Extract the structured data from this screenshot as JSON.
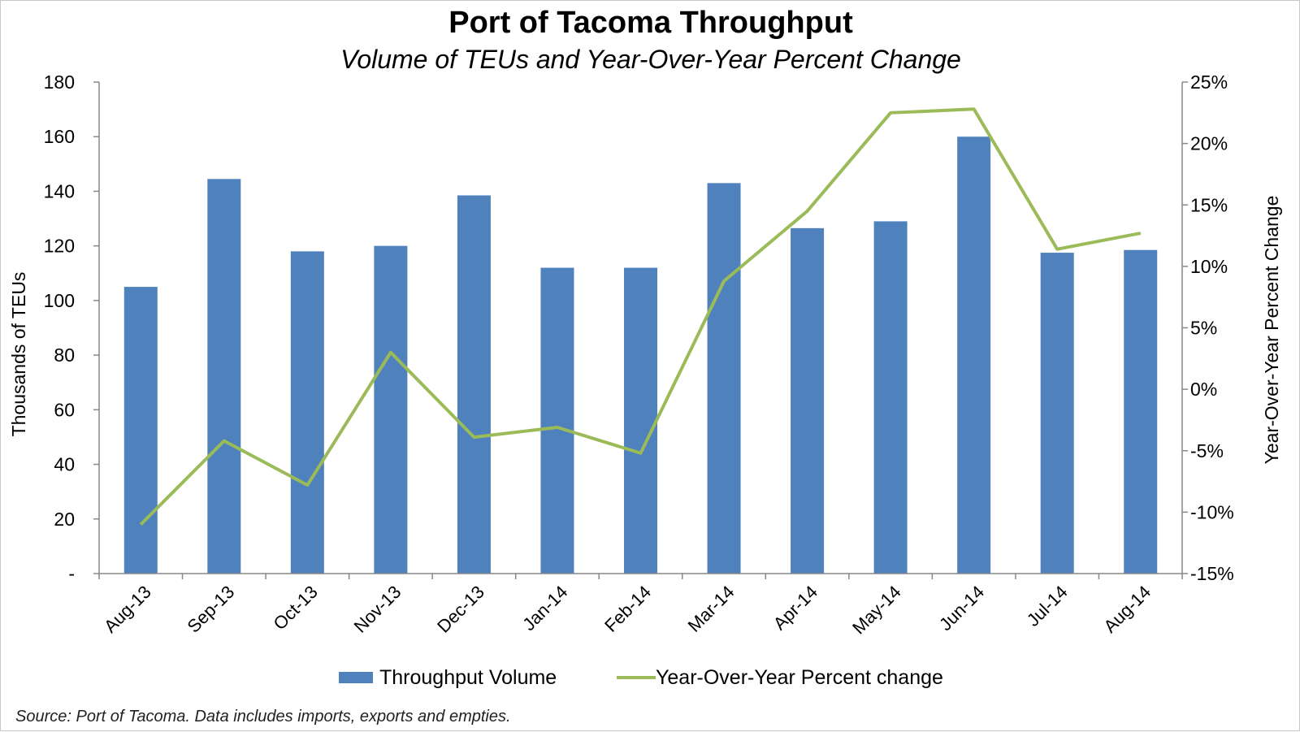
{
  "chart_data": {
    "type": "bar",
    "title": "Port of Tacoma Throughput",
    "subtitle": "Volume of TEUs and Year-Over-Year Percent Change",
    "categories": [
      "Aug-13",
      "Sep-13",
      "Oct-13",
      "Nov-13",
      "Dec-13",
      "Jan-14",
      "Feb-14",
      "Mar-14",
      "Apr-14",
      "May-14",
      "Jun-14",
      "Jul-14",
      "Aug-14"
    ],
    "series": [
      {
        "name": "Throughput Volume",
        "type": "bar",
        "axis": "left",
        "color": "#4f81bd",
        "values": [
          105,
          144.5,
          118,
          120,
          138.5,
          112,
          112,
          143,
          126.5,
          129,
          160,
          117.5,
          118.5
        ]
      },
      {
        "name": "Year-Over-Year Percent change",
        "type": "line",
        "axis": "right",
        "color": "#9bbb59",
        "values": [
          -11,
          -4.2,
          -7.8,
          3.0,
          -3.9,
          -3.1,
          -5.2,
          8.8,
          14.5,
          22.5,
          22.8,
          11.4,
          12.7
        ]
      }
    ],
    "ylabel": "Thousands  of TEUs",
    "ylim": [
      0,
      180
    ],
    "yticks": [
      180,
      160,
      140,
      120,
      100,
      80,
      60,
      40,
      20,
      0
    ],
    "ytick_labels": [
      "180",
      "160",
      "140",
      "120",
      "100",
      "80",
      "60",
      "40",
      "20",
      "-"
    ],
    "y2label": "Year-Over-Year  Percent Change",
    "y2lim": [
      -15,
      25
    ],
    "y2ticks": [
      25,
      20,
      15,
      10,
      5,
      0,
      -5,
      -10,
      -15
    ],
    "y2tick_labels": [
      "25%",
      "20%",
      "15%",
      "10%",
      "5%",
      "0%",
      "-5%",
      "-10%",
      "-15%"
    ],
    "grid": false,
    "legend_position": "bottom",
    "source": "Source: Port of Tacoma. Data includes imports, exports and empties."
  }
}
